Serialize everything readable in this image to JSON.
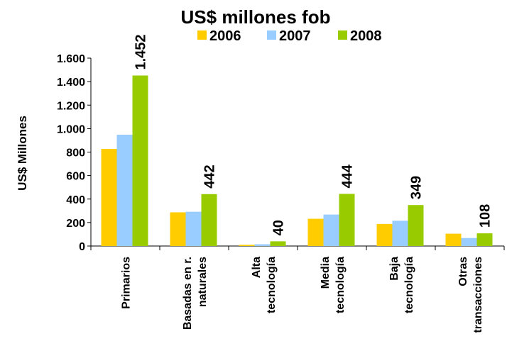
{
  "chart_data": {
    "type": "bar",
    "title": "US$ millones fob",
    "ylabel": "US$ Millones",
    "xlabel": "",
    "ylim": [
      0,
      1600
    ],
    "yticks": [
      0,
      200,
      400,
      600,
      800,
      1000,
      1200,
      1400,
      1600
    ],
    "ytick_labels": [
      "0",
      "200",
      "400",
      "600",
      "800",
      "1.000",
      "1.200",
      "1.400",
      "1.600"
    ],
    "categories": [
      [
        "Primarios"
      ],
      [
        "Basadas en r.",
        "naturales"
      ],
      [
        "Alta",
        "tecnología"
      ],
      [
        "Media",
        "tecnología"
      ],
      [
        "Baja",
        "tecnología"
      ],
      [
        "Otras",
        "transacciones"
      ]
    ],
    "series": [
      {
        "name": "2006",
        "color": "#FFCC00",
        "values": [
          827,
          287,
          10,
          232,
          188,
          105
        ]
      },
      {
        "name": "2007",
        "color": "#99CCFF",
        "values": [
          948,
          292,
          15,
          268,
          215,
          68
        ]
      },
      {
        "name": "2008",
        "color": "#99CC00",
        "values": [
          1452,
          442,
          40,
          444,
          349,
          108
        ]
      }
    ],
    "data_labels": [
      "1.452",
      "442",
      "40",
      "444",
      "349",
      "108"
    ],
    "legend_position": "top",
    "grid": false
  }
}
